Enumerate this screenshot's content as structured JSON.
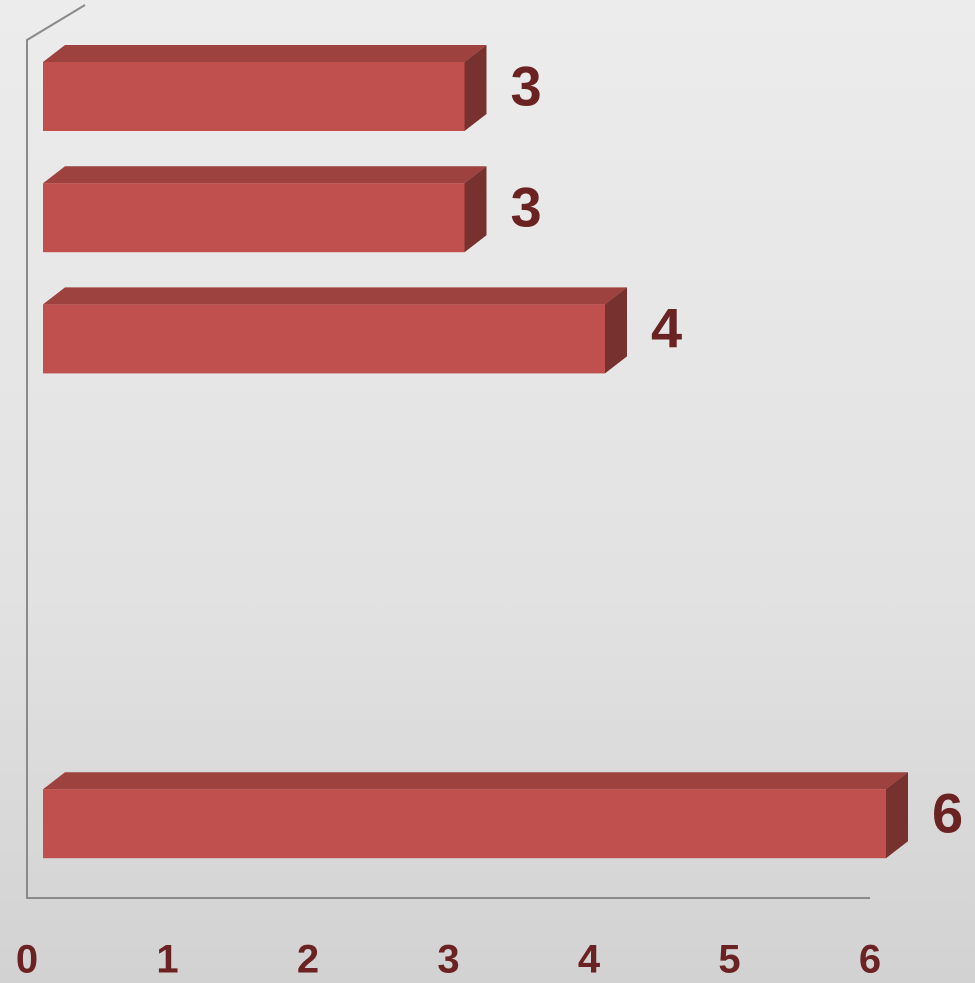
{
  "chart_data": {
    "type": "bar",
    "orientation": "horizontal",
    "categories": [
      null,
      null,
      null,
      null,
      null,
      null,
      null
    ],
    "values": [
      3,
      3,
      4,
      null,
      null,
      null,
      6
    ],
    "color": "#c0504d",
    "xlim": [
      0,
      6
    ],
    "xticks": [
      0,
      1,
      2,
      3,
      4,
      5,
      6
    ],
    "grid": false
  }
}
